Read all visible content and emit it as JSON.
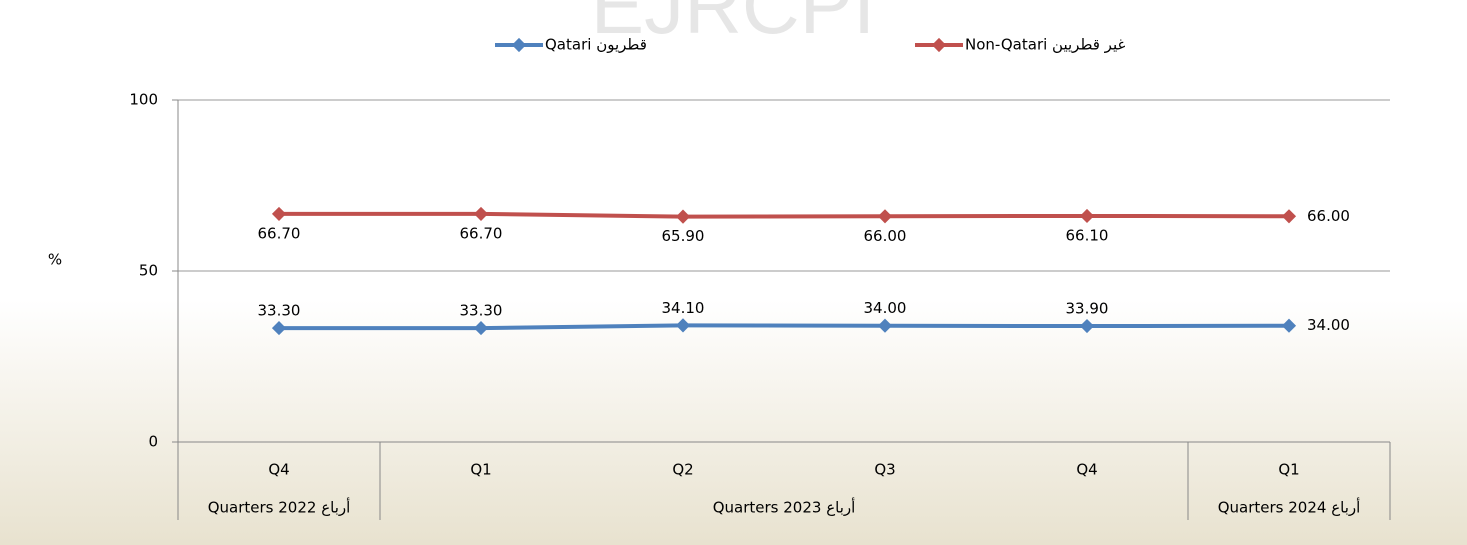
{
  "chart_data": {
    "type": "line",
    "watermark": "EJRCPI",
    "y_label": "%",
    "categories": [
      "Q4",
      "Q1",
      "Q2",
      "Q3",
      "Q4",
      "Q1"
    ],
    "groups": [
      {
        "label": "Quarters 2022 أرباع",
        "span": 1
      },
      {
        "label": "Quarters 2023 أرباع",
        "span": 4
      },
      {
        "label": "Quarters 2024 أرباع",
        "span": 1
      }
    ],
    "series": [
      {
        "name": "Qatari قطريون",
        "color": "#4f81bd",
        "values": [
          33.3,
          33.3,
          34.1,
          34.0,
          33.9,
          34.0
        ],
        "value_labels": [
          "33.30",
          "33.30",
          "34.10",
          "34.00",
          "33.90",
          "34.00"
        ]
      },
      {
        "name": "Non-Qatari غير قطريين",
        "color": "#c0504d",
        "values": [
          66.7,
          66.7,
          65.9,
          66.0,
          66.1,
          66.0
        ],
        "value_labels": [
          "66.70",
          "66.70",
          "65.90",
          "66.00",
          "66.10",
          "66.00"
        ]
      }
    ],
    "ylim": [
      0,
      100
    ],
    "yticks": [
      0,
      50,
      100
    ],
    "grid": true
  }
}
